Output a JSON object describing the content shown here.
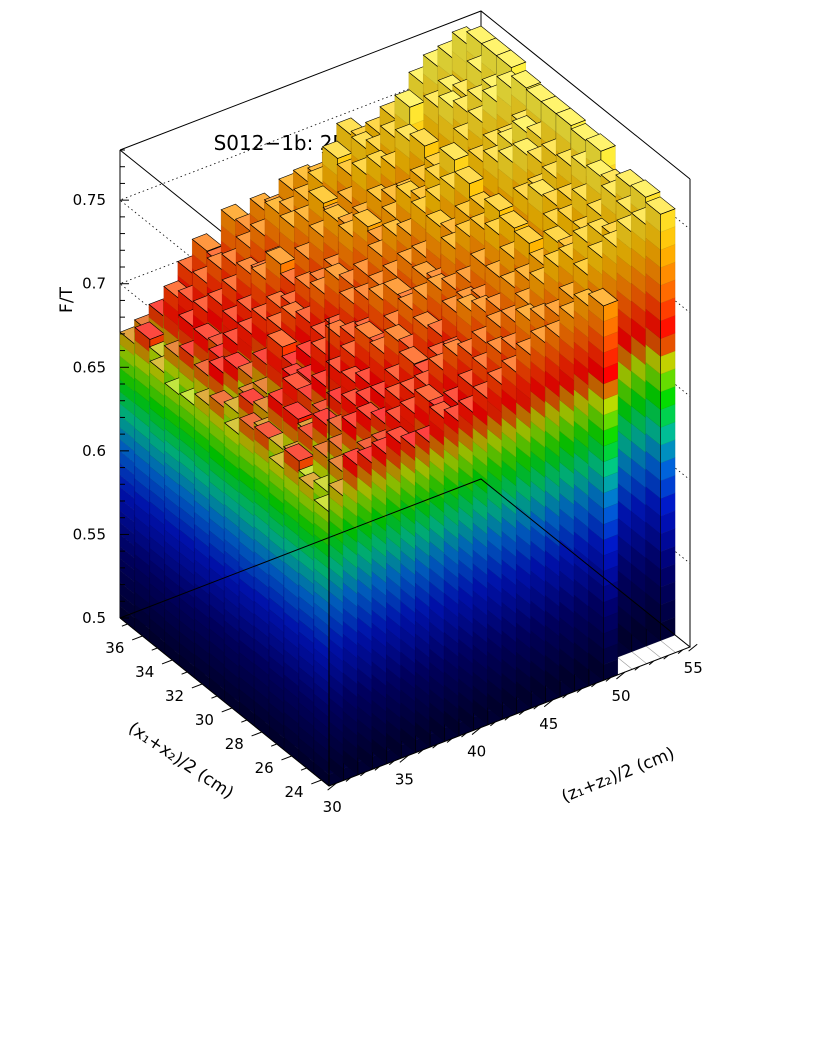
{
  "chart_data": {
    "type": "lego3d",
    "title": "S012−1b: 2D Fast−Over−Total Ratio",
    "xlabel": "(z₁+z₂)/2 (cm)",
    "ylabel": "(x₁+x₂)/2 (cm)",
    "zlabel": "F/T",
    "xlim": [
      29.5,
      54.5
    ],
    "ylim": [
      23.5,
      37.5
    ],
    "zlim": [
      0.5,
      0.78
    ],
    "x_ticks": [
      30,
      35,
      40,
      45,
      50,
      55
    ],
    "y_ticks": [
      24,
      26,
      28,
      30,
      32,
      34,
      36
    ],
    "z_ticks": [
      0.5,
      0.55,
      0.6,
      0.65,
      0.7,
      0.75
    ],
    "x_tick_labels": [
      "30",
      "35",
      "40",
      "45",
      "50",
      "55"
    ],
    "y_tick_labels": [
      "24",
      "26",
      "28",
      "30",
      "32",
      "34",
      "36"
    ],
    "z_tick_labels": [
      "0.5",
      "0.55",
      "0.6",
      "0.65",
      "0.7",
      "0.75"
    ],
    "x": [
      30,
      31,
      32,
      33,
      34,
      35,
      36,
      37,
      38,
      39,
      40,
      41,
      42,
      43,
      44,
      45,
      46,
      47,
      48,
      49,
      50,
      51,
      52,
      53,
      54
    ],
    "y": [
      24,
      25,
      26,
      27,
      28,
      29,
      30,
      31,
      32,
      33,
      34,
      35,
      36,
      37
    ],
    "empty_bins": [
      [
        49,
        28
      ],
      [
        49,
        29
      ],
      [
        49,
        30
      ],
      [
        49,
        31
      ],
      [
        49,
        32
      ],
      [
        49,
        33
      ],
      [
        49,
        34
      ],
      [
        49,
        35
      ],
      [
        49,
        36
      ],
      [
        49,
        37
      ],
      [
        50,
        24
      ],
      [
        51,
        24
      ],
      [
        52,
        24
      ],
      [
        53,
        24
      ],
      [
        54,
        24
      ]
    ],
    "values": [
      [
        0.664,
        0.67,
        0.68,
        0.668,
        0.679,
        0.677,
        0.667,
        0.676,
        0.67,
        0.663,
        0.662,
        0.668,
        0.681,
        0.671
      ],
      [
        0.67,
        0.665,
        0.664,
        0.671,
        0.669,
        0.671,
        0.681,
        0.669,
        0.686,
        0.677,
        0.681,
        0.674,
        0.666,
        0.675
      ],
      [
        0.685,
        0.674,
        0.675,
        0.679,
        0.684,
        0.685,
        0.673,
        0.674,
        0.685,
        0.683,
        0.688,
        0.689,
        0.699,
        0.681
      ],
      [
        0.683,
        0.673,
        0.676,
        0.684,
        0.671,
        0.691,
        0.672,
        0.674,
        0.676,
        0.689,
        0.679,
        0.694,
        0.693,
        0.68
      ],
      [
        0.685,
        0.678,
        0.686,
        0.677,
        0.679,
        0.681,
        0.686,
        0.699,
        0.681,
        0.692,
        0.692,
        0.695,
        0.701,
        0.7
      ],
      [
        0.688,
        0.679,
        0.688,
        0.689,
        0.683,
        0.686,
        0.682,
        0.683,
        0.699,
        0.697,
        0.695,
        0.7,
        0.706,
        0.71
      ],
      [
        0.682,
        0.69,
        0.682,
        0.687,
        0.692,
        0.691,
        0.695,
        0.686,
        0.702,
        0.701,
        0.711,
        0.707,
        0.705,
        0.699
      ],
      [
        0.682,
        0.692,
        0.693,
        0.687,
        0.688,
        0.697,
        0.702,
        0.694,
        0.696,
        0.698,
        0.717,
        0.702,
        0.712,
        0.721
      ],
      [
        0.693,
        0.696,
        0.693,
        0.694,
        0.703,
        0.705,
        0.698,
        0.695,
        0.71,
        0.706,
        0.701,
        0.707,
        0.716,
        0.712
      ],
      [
        0.688,
        0.686,
        0.694,
        0.701,
        0.707,
        0.695,
        0.697,
        0.708,
        0.715,
        0.705,
        0.713,
        0.725,
        0.726,
        0.721
      ],
      [
        0.69,
        0.688,
        0.701,
        0.69,
        0.698,
        0.705,
        0.714,
        0.707,
        0.708,
        0.71,
        0.723,
        0.725,
        0.723,
        0.717
      ],
      [
        0.695,
        0.695,
        0.706,
        0.697,
        0.708,
        0.712,
        0.714,
        0.711,
        0.711,
        0.727,
        0.729,
        0.733,
        0.727,
        0.726
      ],
      [
        0.7,
        0.702,
        0.703,
        0.697,
        0.7,
        0.715,
        0.704,
        0.714,
        0.719,
        0.73,
        0.721,
        0.72,
        0.734,
        0.728
      ],
      [
        0.704,
        0.708,
        0.707,
        0.719,
        0.711,
        0.717,
        0.717,
        0.718,
        0.728,
        0.717,
        0.724,
        0.726,
        0.746,
        0.726
      ],
      [
        0.711,
        0.707,
        0.713,
        0.715,
        0.713,
        0.714,
        0.71,
        0.719,
        0.725,
        0.728,
        0.731,
        0.74,
        0.732,
        0.732
      ],
      [
        0.715,
        0.721,
        0.713,
        0.713,
        0.711,
        0.715,
        0.728,
        0.734,
        0.735,
        0.737,
        0.728,
        0.741,
        0.745,
        0.746
      ],
      [
        0.715,
        0.718,
        0.72,
        0.723,
        0.722,
        0.722,
        0.732,
        0.726,
        0.739,
        0.731,
        0.728,
        0.737,
        0.74,
        0.738
      ],
      [
        0.723,
        0.717,
        0.729,
        0.724,
        0.73,
        0.737,
        0.733,
        0.733,
        0.743,
        0.741,
        0.733,
        0.75,
        0.745,
        0.74
      ],
      [
        0.727,
        0.724,
        0.736,
        0.73,
        0.736,
        0.738,
        0.741,
        0.735,
        0.743,
        0.75,
        0.737,
        0.744,
        0.76,
        0.746
      ],
      [
        0.724,
        0.735,
        0.737,
        0.74,
        0.742,
        0.742,
        0.737,
        0.737,
        0.749,
        0.745,
        0.749,
        0.755,
        0.76,
        0.747
      ],
      [
        0.736,
        0.742,
        0.744,
        0.731,
        0.74,
        0.75,
        0.741,
        0.756,
        0.749,
        0.742,
        0.748,
        0.76,
        0.753,
        0.76
      ],
      [
        0.747,
        0.745,
        0.745,
        0.739,
        0.739,
        0.741,
        0.743,
        0.757,
        0.756,
        0.748,
        0.755,
        0.754,
        0.759,
        0.767
      ],
      [
        0.745,
        0.751,
        0.74,
        0.746,
        0.748,
        0.741,
        0.747,
        0.749,
        0.76,
        0.748,
        0.764,
        0.757,
        0.753,
        0.769
      ],
      [
        0.749,
        0.752,
        0.752,
        0.754,
        0.759,
        0.757,
        0.751,
        0.75,
        0.753,
        0.753,
        0.769,
        0.76,
        0.764,
        0.774
      ],
      [
        0.752,
        0.755,
        0.758,
        0.757,
        0.75,
        0.764,
        0.763,
        0.765,
        0.765,
        0.765,
        0.766,
        0.771,
        0.771,
        0.771
      ]
    ]
  }
}
